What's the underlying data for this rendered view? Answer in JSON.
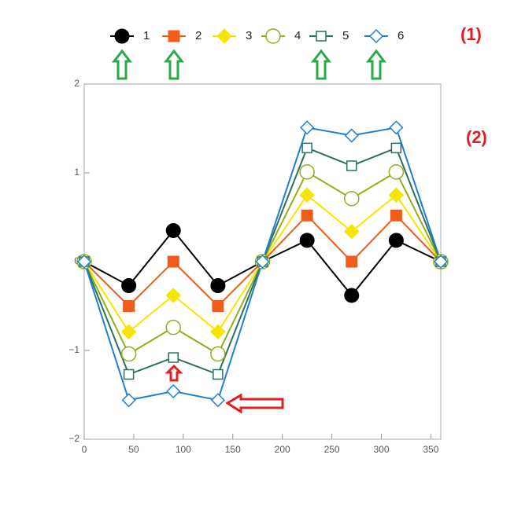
{
  "chart_data": {
    "type": "line",
    "x": [
      0,
      45,
      90,
      135,
      180,
      225,
      270,
      315,
      360
    ],
    "series": [
      {
        "name": "1",
        "color": "#000000",
        "marker": "circle",
        "filled": true,
        "values": [
          0,
          -0.27,
          0.35,
          -0.27,
          0,
          0.24,
          -0.38,
          0.24,
          0
        ]
      },
      {
        "name": "2",
        "color": "#f25c19",
        "marker": "square",
        "filled": true,
        "values": [
          0,
          -0.5,
          0,
          -0.5,
          0,
          0.52,
          0,
          0.52,
          0
        ]
      },
      {
        "name": "3",
        "color": "#f5e600",
        "marker": "diamond",
        "filled": true,
        "values": [
          0,
          -0.79,
          -0.38,
          -0.79,
          0,
          0.75,
          0.34,
          0.75,
          0
        ]
      },
      {
        "name": "4",
        "color": "#8fb01a",
        "marker": "circle",
        "filled": false,
        "values": [
          0,
          -1.04,
          -0.74,
          -1.04,
          0,
          1.01,
          0.71,
          1.01,
          0
        ]
      },
      {
        "name": "5",
        "color": "#2e7060",
        "marker": "square",
        "filled": false,
        "values": [
          0,
          -1.27,
          -1.08,
          -1.27,
          0,
          1.28,
          1.08,
          1.28,
          0
        ]
      },
      {
        "name": "6",
        "color": "#1f7fcf",
        "marker": "diamond",
        "filled": false,
        "values": [
          0,
          -1.56,
          -1.46,
          -1.56,
          0,
          1.51,
          1.42,
          1.51,
          0
        ]
      }
    ],
    "xlim": [
      0,
      360
    ],
    "xticks": [
      0,
      50,
      100,
      150,
      200,
      250,
      300,
      350
    ],
    "ylim": [
      -2,
      2
    ],
    "yticks": [
      {
        "value": -2,
        "label": "−2"
      },
      {
        "value": -1,
        "label": "−1"
      },
      0,
      1,
      2
    ],
    "legend": "top",
    "annotations": [
      "(1)",
      "(2)"
    ]
  }
}
